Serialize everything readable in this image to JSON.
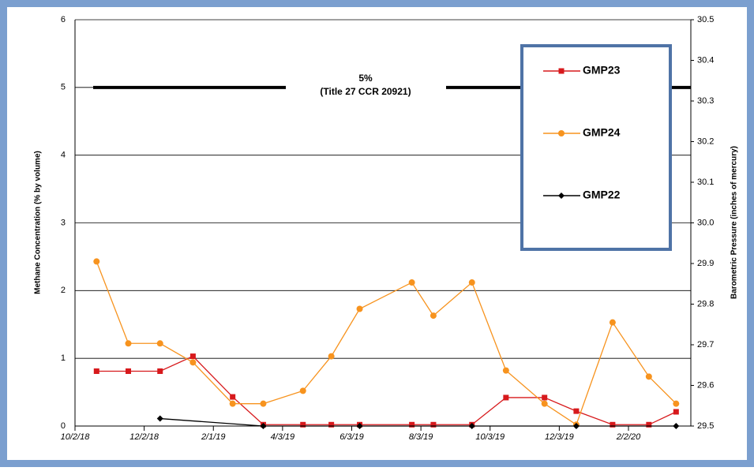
{
  "chart_data": {
    "type": "line",
    "y_label": "Methane Concentration (% by volume)",
    "y2_label": "Barometric Pressure (inches of mercury)",
    "x": [
      "2018-10-21",
      "2018-11-18",
      "2018-12-16",
      "2019-01-14",
      "2019-02-18",
      "2019-03-17",
      "2019-04-21",
      "2019-05-16",
      "2019-06-10",
      "2019-07-26",
      "2019-08-14",
      "2019-09-17",
      "2019-10-17",
      "2019-11-20",
      "2019-12-18",
      "2020-01-19",
      "2020-02-20",
      "2020-03-15"
    ],
    "xlim": [
      "2018-10-02",
      "2020-03-28"
    ],
    "xticks": [
      {
        "value": "2018-10-02",
        "label": "10/2/18"
      },
      {
        "value": "2018-12-02",
        "label": "12/2/18"
      },
      {
        "value": "2019-02-01",
        "label": "2/1/19"
      },
      {
        "value": "2019-04-03",
        "label": "4/3/19"
      },
      {
        "value": "2019-06-03",
        "label": "6/3/19"
      },
      {
        "value": "2019-08-03",
        "label": "8/3/19"
      },
      {
        "value": "2019-10-03",
        "label": "10/3/19"
      },
      {
        "value": "2019-12-03",
        "label": "12/3/19"
      },
      {
        "value": "2020-02-02",
        "label": "2/2/20"
      }
    ],
    "ylim": [
      0,
      6
    ],
    "yticks": [
      0,
      1,
      2,
      3,
      4,
      5,
      6
    ],
    "y2lim": [
      29.5,
      30.5
    ],
    "y2ticks": [
      29.5,
      29.6,
      29.7,
      29.8,
      29.9,
      {
        "value": 30,
        "label": "30.0"
      },
      30.1,
      30.2,
      30.3,
      30.4,
      30.5
    ],
    "grid": true,
    "legend": "upper right",
    "reference_line": {
      "value": 5,
      "label": [
        "5%",
        "(Title 27 CCR 20921)"
      ]
    },
    "series": [
      {
        "name": "GMP23",
        "color": "#d7191c",
        "marker": "square",
        "values": [
          0.81,
          0.81,
          0.81,
          1.03,
          0.43,
          0.02,
          0.02,
          0.02,
          0.02,
          0.02,
          0.02,
          0.02,
          0.42,
          0.42,
          0.22,
          0.02,
          0.02,
          0.21
        ]
      },
      {
        "name": "GMP24",
        "color": "#f7931e",
        "marker": "circle",
        "values": [
          2.43,
          1.22,
          1.22,
          0.94,
          0.33,
          0.33,
          0.52,
          1.03,
          1.73,
          2.12,
          1.63,
          2.12,
          0.82,
          0.33,
          0.02,
          1.53,
          0.73,
          0.33
        ]
      },
      {
        "name": "GMP22",
        "color": "#000000",
        "marker": "diamond",
        "x": [
          "2018-12-16",
          "2019-03-17",
          "2019-06-10",
          "2019-09-17",
          "2019-12-18",
          "2020-03-15"
        ],
        "values": [
          0.11,
          0,
          0,
          0,
          0,
          0
        ]
      }
    ]
  }
}
